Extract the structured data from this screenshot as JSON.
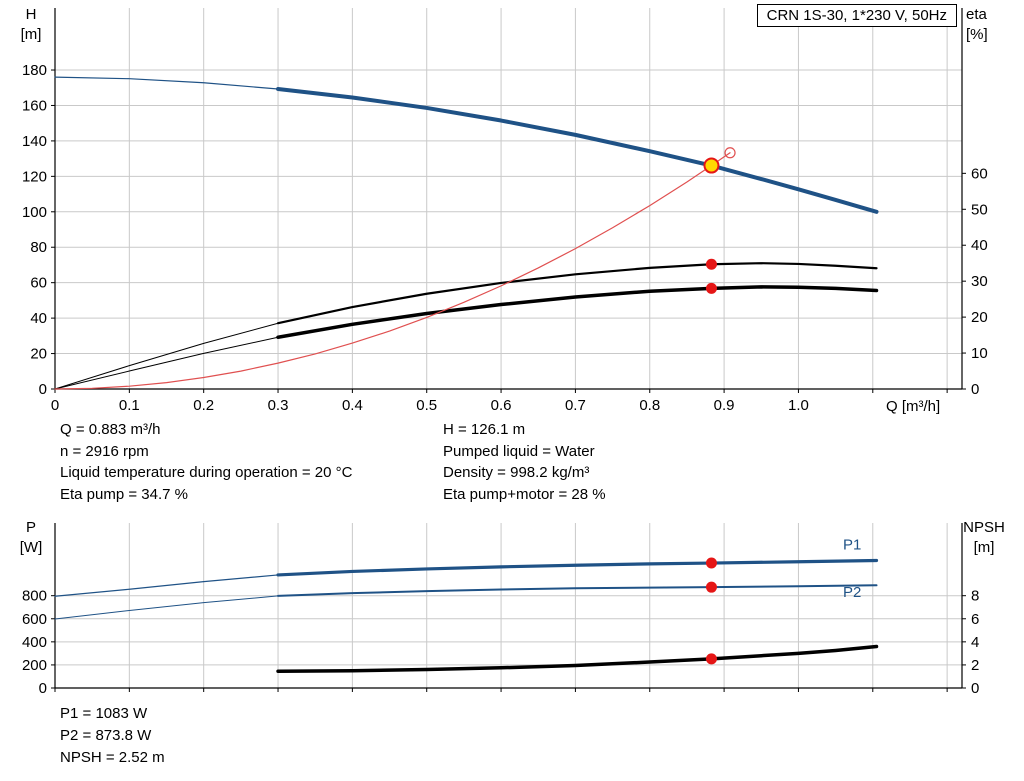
{
  "title_box": "CRN 1S-30, 1*230 V, 50Hz",
  "info_top": {
    "left": [
      "Q = 0.883 m³/h",
      "n = 2916 rpm",
      "Liquid temperature during operation = 20 °C",
      "Eta pump = 34.7 %"
    ],
    "right": [
      "H = 126.1 m",
      "Pumped liquid = Water",
      "Density = 998.2 kg/m³",
      "Eta pump+motor = 28 %"
    ]
  },
  "info_bottom": [
    "P1 = 1083 W",
    "P2 = 873.8 W",
    "NPSH = 2.52 m"
  ],
  "colors": {
    "curve_blue": "#1f5286",
    "curve_black": "#000000",
    "curve_red": "#e05050",
    "dot_red": "#e51616",
    "duty_yellow": "#ffd900",
    "grid": "#c9c9c9",
    "axis": "#000000"
  },
  "chart_data": [
    {
      "type": "line",
      "name": "qh-eta-chart",
      "axes": {
        "x": {
          "label": "Q [m³/h]",
          "min": 0,
          "max": 1.22,
          "tick_values": [
            0,
            0.1,
            0.2,
            0.3,
            0.4,
            0.5,
            0.6,
            0.7,
            0.8,
            0.9,
            1.0,
            1.1,
            1.2
          ],
          "tick_labels": [
            "0",
            "0.1",
            "0.2",
            "0.3",
            "0.4",
            "0.5",
            "0.6",
            "0.7",
            "0.8",
            "0.9",
            "1.0",
            "",
            ""
          ]
        },
        "y_left": {
          "label_lines": [
            "H",
            "[m]"
          ],
          "min": 0,
          "max": 215,
          "tick_values": [
            0,
            20,
            40,
            60,
            80,
            100,
            120,
            140,
            160,
            180
          ],
          "tick_labels": [
            "0",
            "20",
            "40",
            "60",
            "80",
            "100",
            "120",
            "140",
            "160",
            "180"
          ]
        },
        "y_right": {
          "label_lines": [
            "eta",
            "[%]"
          ],
          "min": 0,
          "max": 106,
          "tick_values": [
            0,
            10,
            20,
            30,
            40,
            50,
            60
          ],
          "tick_labels": [
            "0",
            "10",
            "20",
            "30",
            "40",
            "50",
            "60"
          ]
        }
      },
      "series": [
        {
          "name": "pump-head-curve",
          "axis": "left",
          "color": "#1f5286",
          "segments": [
            {
              "width": 1.2,
              "points": [
                [
                  0,
                  176
                ],
                [
                  0.1,
                  175.1
                ],
                [
                  0.2,
                  172.8
                ],
                [
                  0.3,
                  169.3
                ]
              ]
            },
            {
              "width": 4,
              "points": [
                [
                  0.3,
                  169.3
                ],
                [
                  0.4,
                  164.5
                ],
                [
                  0.5,
                  158.6
                ],
                [
                  0.6,
                  151.5
                ],
                [
                  0.7,
                  143.4
                ],
                [
                  0.8,
                  134.2
                ],
                [
                  0.883,
                  126.1
                ],
                [
                  0.95,
                  118.5
                ],
                [
                  1.0,
                  112.7
                ],
                [
                  1.05,
                  106.7
                ],
                [
                  1.105,
                  100
                ]
              ]
            }
          ]
        },
        {
          "name": "eta-pump-curve",
          "axis": "right",
          "color": "#000000",
          "segments": [
            {
              "width": 1,
              "points": [
                [
                  0,
                  0
                ],
                [
                  0.1,
                  6.5
                ],
                [
                  0.2,
                  12.7
                ],
                [
                  0.3,
                  18.3
                ]
              ]
            },
            {
              "width": 2.2,
              "points": [
                [
                  0.3,
                  18.3
                ],
                [
                  0.4,
                  22.8
                ],
                [
                  0.5,
                  26.5
                ],
                [
                  0.6,
                  29.5
                ],
                [
                  0.7,
                  31.9
                ],
                [
                  0.8,
                  33.7
                ],
                [
                  0.883,
                  34.7
                ],
                [
                  0.95,
                  35
                ],
                [
                  1.0,
                  34.8
                ],
                [
                  1.05,
                  34.3
                ],
                [
                  1.105,
                  33.6
                ]
              ]
            }
          ]
        },
        {
          "name": "eta-pump-motor-curve",
          "axis": "right",
          "color": "#000000",
          "segments": [
            {
              "width": 1,
              "points": [
                [
                  0,
                  0
                ],
                [
                  0.1,
                  5.0
                ],
                [
                  0.2,
                  9.9
                ],
                [
                  0.3,
                  14.4
                ]
              ]
            },
            {
              "width": 3.5,
              "points": [
                [
                  0.3,
                  14.4
                ],
                [
                  0.4,
                  18
                ],
                [
                  0.5,
                  21
                ],
                [
                  0.6,
                  23.5
                ],
                [
                  0.7,
                  25.6
                ],
                [
                  0.8,
                  27.2
                ],
                [
                  0.883,
                  28
                ],
                [
                  0.95,
                  28.4
                ],
                [
                  1.0,
                  28.3
                ],
                [
                  1.05,
                  28
                ],
                [
                  1.105,
                  27.4
                ]
              ]
            }
          ]
        },
        {
          "name": "system-curve",
          "axis": "left",
          "color": "#e05050",
          "segments": [
            {
              "width": 1.2,
              "points": [
                [
                  0,
                  0
                ],
                [
                  0.05,
                  0.4
                ],
                [
                  0.1,
                  1.6
                ],
                [
                  0.15,
                  3.6
                ],
                [
                  0.2,
                  6.5
                ],
                [
                  0.25,
                  10.1
                ],
                [
                  0.3,
                  14.6
                ],
                [
                  0.35,
                  19.8
                ],
                [
                  0.4,
                  25.9
                ],
                [
                  0.45,
                  32.7
                ],
                [
                  0.5,
                  40.4
                ],
                [
                  0.55,
                  48.9
                ],
                [
                  0.6,
                  58.2
                ],
                [
                  0.65,
                  68.3
                ],
                [
                  0.7,
                  79.2
                ],
                [
                  0.75,
                  91
                ],
                [
                  0.8,
                  103.5
                ],
                [
                  0.85,
                  116.8
                ],
                [
                  0.883,
                  126.1
                ],
                [
                  0.908,
                  133.3
                ]
              ]
            }
          ]
        }
      ],
      "markers": [
        {
          "name": "requested-duty-point",
          "style": "open",
          "q": 0.908,
          "value": 133.3,
          "axis": "left"
        },
        {
          "name": "duty-point",
          "style": "duty",
          "q": 0.883,
          "value": 126.1,
          "axis": "left"
        },
        {
          "name": "eta-pump-point",
          "style": "dot",
          "q": 0.883,
          "value": 34.7,
          "axis": "right"
        },
        {
          "name": "eta-pump-motor-point",
          "style": "dot",
          "q": 0.883,
          "value": 28,
          "axis": "right"
        }
      ]
    },
    {
      "type": "line",
      "name": "power-npsh-chart",
      "axes": {
        "x": {
          "label": "",
          "min": 0,
          "max": 1.22,
          "tick_values": [
            0,
            0.1,
            0.2,
            0.3,
            0.4,
            0.5,
            0.6,
            0.7,
            0.8,
            0.9,
            1.0,
            1.1,
            1.2
          ],
          "tick_labels": [
            "",
            "",
            "",
            "",
            "",
            "",
            "",
            "",
            "",
            "",
            "",
            "",
            ""
          ]
        },
        "y_left": {
          "label_lines": [
            "P",
            "[W]"
          ],
          "min": 0,
          "max": 1430,
          "tick_values": [
            0,
            200,
            400,
            600,
            800
          ],
          "tick_labels": [
            "0",
            "200",
            "400",
            "600",
            "800"
          ]
        },
        "y_right": {
          "label_lines": [
            "NPSH",
            "[m]"
          ],
          "min": 0,
          "max": 14.3,
          "tick_values": [
            0,
            2,
            4,
            6,
            8
          ],
          "tick_labels": [
            "0",
            "2",
            "4",
            "6",
            "8"
          ]
        }
      },
      "series": [
        {
          "name": "p1-curve",
          "axis": "left",
          "color": "#1f5286",
          "segments": [
            {
              "width": 1.2,
              "points": [
                [
                  0,
                  795
                ],
                [
                  0.1,
                  856
                ],
                [
                  0.2,
                  922
                ],
                [
                  0.3,
                  980
                ]
              ]
            },
            {
              "width": 3.2,
              "points": [
                [
                  0.3,
                  980
                ],
                [
                  0.4,
                  1010
                ],
                [
                  0.5,
                  1032
                ],
                [
                  0.6,
                  1050
                ],
                [
                  0.7,
                  1064
                ],
                [
                  0.8,
                  1076
                ],
                [
                  0.883,
                  1083
                ],
                [
                  1.0,
                  1094
                ],
                [
                  1.105,
                  1105
                ]
              ]
            }
          ]
        },
        {
          "name": "p2-curve",
          "axis": "left",
          "color": "#1f5286",
          "segments": [
            {
              "width": 1,
              "points": [
                [
                  0,
                  598
                ],
                [
                  0.1,
                  672
                ],
                [
                  0.2,
                  740
                ],
                [
                  0.3,
                  798
                ]
              ]
            },
            {
              "width": 2,
              "points": [
                [
                  0.3,
                  798
                ],
                [
                  0.4,
                  822
                ],
                [
                  0.5,
                  840
                ],
                [
                  0.6,
                  854
                ],
                [
                  0.7,
                  864
                ],
                [
                  0.8,
                  870
                ],
                [
                  0.883,
                  873.8
                ],
                [
                  1.0,
                  882
                ],
                [
                  1.105,
                  890
                ]
              ]
            }
          ]
        },
        {
          "name": "npsh-curve",
          "axis": "right",
          "color": "#000000",
          "segments": [
            {
              "width": 3.5,
              "points": [
                [
                  0.3,
                  1.45
                ],
                [
                  0.4,
                  1.5
                ],
                [
                  0.5,
                  1.6
                ],
                [
                  0.6,
                  1.75
                ],
                [
                  0.7,
                  1.95
                ],
                [
                  0.8,
                  2.25
                ],
                [
                  0.883,
                  2.52
                ],
                [
                  0.95,
                  2.8
                ],
                [
                  1.0,
                  3.0
                ],
                [
                  1.05,
                  3.25
                ],
                [
                  1.105,
                  3.6
                ]
              ]
            }
          ]
        }
      ],
      "markers": [
        {
          "name": "p1-point",
          "style": "dot",
          "q": 0.883,
          "value": 1083,
          "axis": "left"
        },
        {
          "name": "p2-point",
          "style": "dot",
          "q": 0.883,
          "value": 873.8,
          "axis": "left"
        },
        {
          "name": "npsh-point",
          "style": "dot",
          "q": 0.883,
          "value": 2.52,
          "axis": "right"
        }
      ],
      "annotations": [
        {
          "name": "p1-label",
          "text": "P1",
          "q": 1.06,
          "value": 1245,
          "axis": "left",
          "color": "#1f5286"
        },
        {
          "name": "p2-label",
          "text": "P2",
          "q": 1.06,
          "value": 830,
          "axis": "left",
          "color": "#1f5286"
        }
      ]
    }
  ]
}
